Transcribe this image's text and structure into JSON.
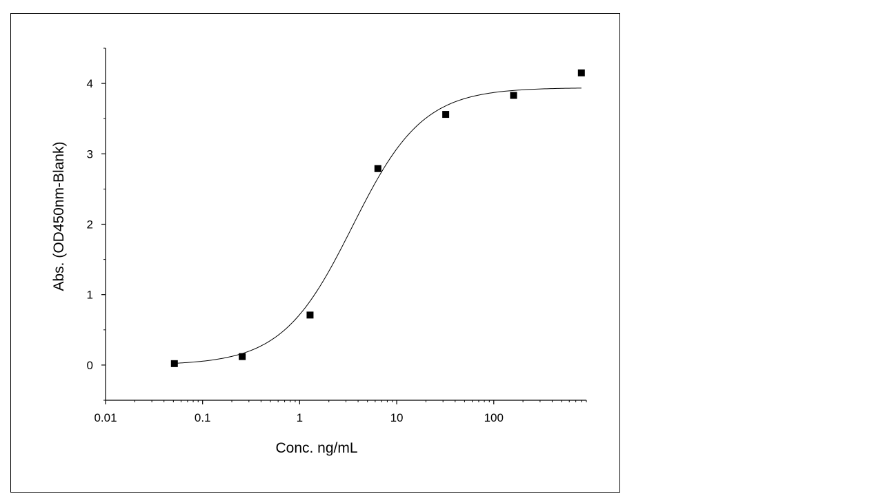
{
  "chart_data": {
    "type": "scatter",
    "title": "",
    "xlabel": "Conc. ng/mL",
    "ylabel": "Abs. (OD450nm-Blank)",
    "x_scale": "log",
    "xlim": [
      0.01,
      900
    ],
    "ylim": [
      -0.5,
      4.5
    ],
    "x_ticks": [
      0.01,
      0.1,
      1,
      10,
      100
    ],
    "x_tick_labels": [
      "0.01",
      "0.1",
      "1",
      "10",
      "100"
    ],
    "y_ticks": [
      0,
      1,
      2,
      3,
      4
    ],
    "y_tick_labels": [
      "0",
      "1",
      "2",
      "3",
      "4"
    ],
    "grid": false,
    "legend": "none",
    "series": [
      {
        "kind": "points",
        "marker": "square",
        "color": "#000000",
        "x": [
          0.0512,
          0.256,
          1.28,
          6.4,
          32,
          160,
          800
        ],
        "y": [
          0.02,
          0.12,
          0.71,
          2.79,
          3.56,
          3.83,
          4.15
        ]
      },
      {
        "kind": "fit-curve",
        "color": "#000000",
        "model": "four-parameter logistic",
        "bottom": 0.0,
        "top": 3.94,
        "ec50": 3.5,
        "hill": 1.2,
        "x_range": [
          0.0512,
          800
        ]
      }
    ]
  }
}
